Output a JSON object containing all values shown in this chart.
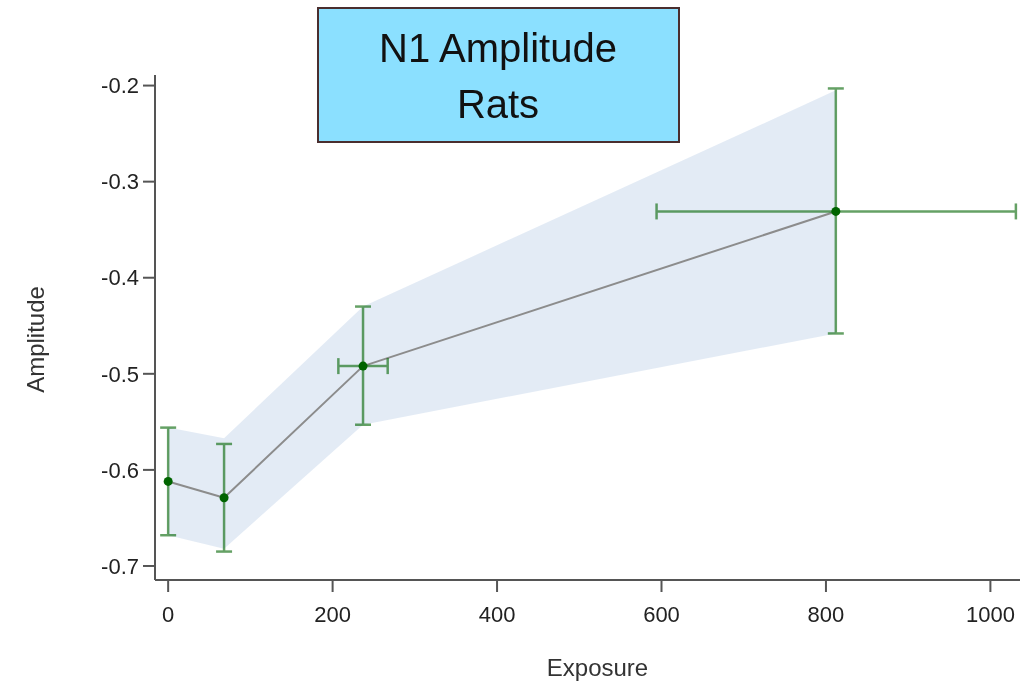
{
  "chart_data": {
    "type": "line",
    "title": "N1 Amplitude Rats",
    "xlabel": "Exposure",
    "ylabel": "Amplitude",
    "x": [
      0,
      68,
      237,
      812
    ],
    "xlim": [
      -16,
      1036
    ],
    "ylim": [
      -0.7146,
      -0.189
    ],
    "xticks": [
      0,
      200,
      400,
      600,
      800,
      1000
    ],
    "yticks": [
      -0.7,
      -0.6,
      -0.5,
      -0.4,
      -0.3,
      -0.2
    ],
    "grid": false,
    "series": [
      {
        "color": "#8c8c8c",
        "marker": "none",
        "values": [
          -0.612,
          -0.629,
          -0.492,
          -0.331
        ],
        "lower": [
          -0.668,
          -0.682,
          -0.553,
          -0.458
        ],
        "upper": [
          -0.556,
          -0.567,
          -0.43,
          -0.205
        ]
      },
      {
        "type": "scatter",
        "color": "#006400",
        "marker": "circle",
        "values": [
          -0.612,
          -0.629,
          -0.492,
          -0.331
        ],
        "errors": [
          [
            -0.668,
            -0.556
          ],
          [
            -0.685,
            -0.573
          ],
          [
            -0.553,
            -0.43
          ],
          [
            -0.458,
            -0.203
          ]
        ],
        "xerrors": [
          null,
          null,
          [
            207,
            267
          ],
          [
            594,
            1031
          ]
        ]
      }
    ]
  }
}
